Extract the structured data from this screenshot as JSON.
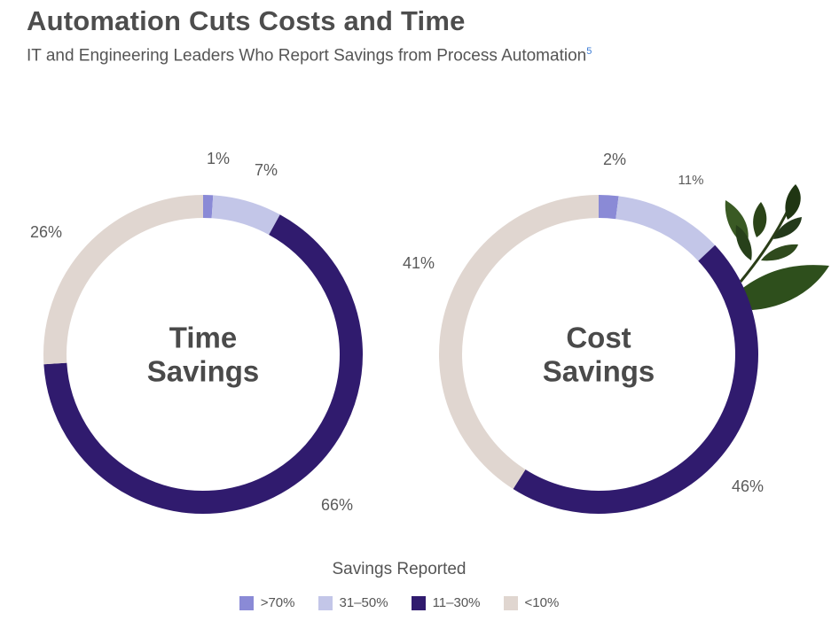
{
  "chart_data": {
    "type": "pie",
    "title": "Automation Cuts Costs and Time",
    "subtitle": "IT and Engineering Leaders Who Report Savings from Process Automation",
    "subtitle_footnote": "5",
    "legend_title": "Savings Reported",
    "categories": [
      ">70%",
      "31–50%",
      "11–30%",
      "<10%"
    ],
    "colors": [
      "#8a8ad6",
      "#c3c6e8",
      "#301b6e",
      "#e0d6d0"
    ],
    "series": [
      {
        "name": "Time Savings",
        "center_line1": "Time",
        "center_line2": "Savings",
        "values": [
          1,
          7,
          66,
          26
        ],
        "labels": [
          "1%",
          "7%",
          "66%",
          "26%"
        ]
      },
      {
        "name": "Cost Savings",
        "center_line1": "Cost",
        "center_line2": "Savings",
        "values": [
          2,
          11,
          46,
          41
        ],
        "labels": [
          "2%",
          "11%",
          "46%",
          "41%"
        ]
      }
    ]
  }
}
